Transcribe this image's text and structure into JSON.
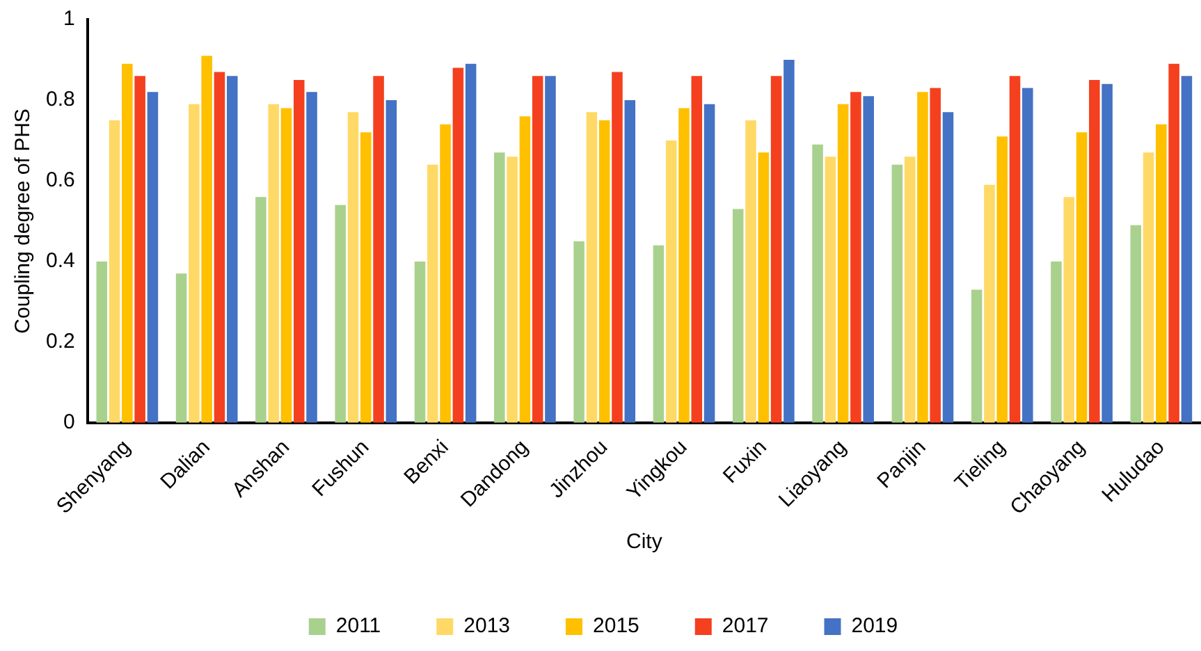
{
  "chart_data": {
    "type": "bar",
    "xlabel": "City",
    "ylabel": "Coupling degree of PHS",
    "categories": [
      "Shenyang",
      "Dalian",
      "Anshan",
      "Fushun",
      "Benxi",
      "Dandong",
      "Jinzhou",
      "Yingkou",
      "Fuxin",
      "Liaoyang",
      "Panjin",
      "Tieling",
      "Chaoyang",
      "Huludao"
    ],
    "series": [
      {
        "name": "2011",
        "color": "#a9d18e",
        "values": [
          0.4,
          0.37,
          0.56,
          0.54,
          0.4,
          0.67,
          0.45,
          0.44,
          0.53,
          0.69,
          0.64,
          0.33,
          0.4,
          0.49
        ]
      },
      {
        "name": "2013",
        "color": "#ffd966",
        "values": [
          0.75,
          0.79,
          0.79,
          0.77,
          0.64,
          0.66,
          0.77,
          0.7,
          0.75,
          0.66,
          0.66,
          0.59,
          0.56,
          0.67
        ]
      },
      {
        "name": "2015",
        "color": "#ffc000",
        "values": [
          0.89,
          0.91,
          0.78,
          0.72,
          0.74,
          0.76,
          0.75,
          0.78,
          0.67,
          0.79,
          0.82,
          0.71,
          0.72,
          0.74
        ]
      },
      {
        "name": "2017",
        "color": "#f4401f",
        "values": [
          0.86,
          0.87,
          0.85,
          0.86,
          0.88,
          0.86,
          0.87,
          0.86,
          0.86,
          0.82,
          0.83,
          0.86,
          0.85,
          0.89
        ]
      },
      {
        "name": "2019",
        "color": "#4472c4",
        "values": [
          0.82,
          0.86,
          0.82,
          0.8,
          0.89,
          0.86,
          0.8,
          0.79,
          0.9,
          0.81,
          0.77,
          0.83,
          0.84,
          0.86
        ]
      }
    ],
    "ylim": [
      0,
      1
    ],
    "yticks": [
      0,
      {
        "value": 0.2,
        "label": "0.2"
      },
      {
        "value": 0.4,
        "label": "0.4"
      },
      {
        "value": 0.6,
        "label": "0.6"
      },
      {
        "value": 0.8,
        "label": "0.8"
      },
      1
    ],
    "grid": false,
    "legend": "bottom"
  }
}
